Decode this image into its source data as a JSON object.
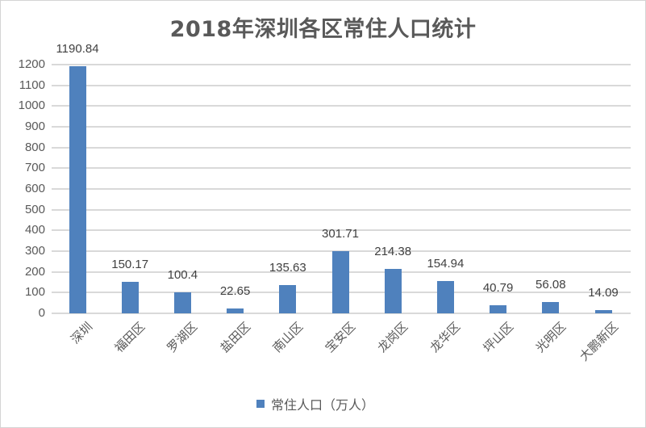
{
  "chart_data": {
    "type": "bar",
    "title": "2018年深圳各区常住人口统计",
    "xlabel": "",
    "ylabel": "",
    "ylim": [
      0,
      1200
    ],
    "yticks": [
      0,
      100,
      200,
      300,
      400,
      500,
      600,
      700,
      800,
      900,
      1000,
      1100,
      1200
    ],
    "grid": true,
    "legend_position": "bottom",
    "categories": [
      "深圳",
      "福田区",
      "罗湖区",
      "盐田区",
      "南山区",
      "宝安区",
      "龙岗区",
      "龙华区",
      "坪山区",
      "光明区",
      "大鹏新区"
    ],
    "series": [
      {
        "name": "常住人口（万人）",
        "color": "#4f81bd",
        "values": [
          1190.84,
          150.17,
          100.4,
          22.65,
          135.63,
          301.71,
          214.38,
          154.94,
          40.79,
          56.08,
          14.09
        ],
        "labels": [
          "1190.84",
          "150.17",
          "100.4",
          "22.65",
          "135.63",
          "301.71",
          "214.38",
          "154.94",
          "40.79",
          "56.08",
          "14.09"
        ]
      }
    ]
  },
  "colors": {
    "bar": "#4f81bd",
    "grid": "#d9d9d9",
    "text": "#595959",
    "title": "#595959"
  }
}
